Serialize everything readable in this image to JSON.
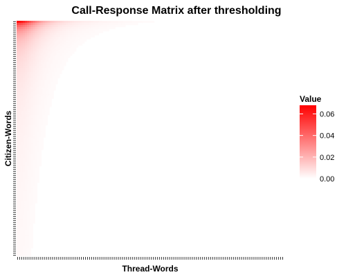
{
  "chart_data": {
    "type": "heatmap",
    "title": "Call-Response Matrix after thresholding",
    "xlabel": "Thread-Words",
    "ylabel": "Citizen-Words",
    "x_tick_labels_shown": false,
    "y_tick_labels_shown": false,
    "n_x_categories": 130,
    "n_y_categories": 115,
    "grid": false,
    "color_scale": {
      "name": "Value",
      "low_color": "#ffffff",
      "high_color": "#ff0000",
      "min": 0.0,
      "max": 0.068,
      "ticks": [
        0.0,
        0.02,
        0.04,
        0.06
      ],
      "tick_labels": [
        "0.00",
        "0.02",
        "0.04",
        "0.06"
      ]
    },
    "legend_position": "right",
    "pattern": {
      "description": "value decays with row and column rank",
      "max_value": 0.065
    }
  }
}
